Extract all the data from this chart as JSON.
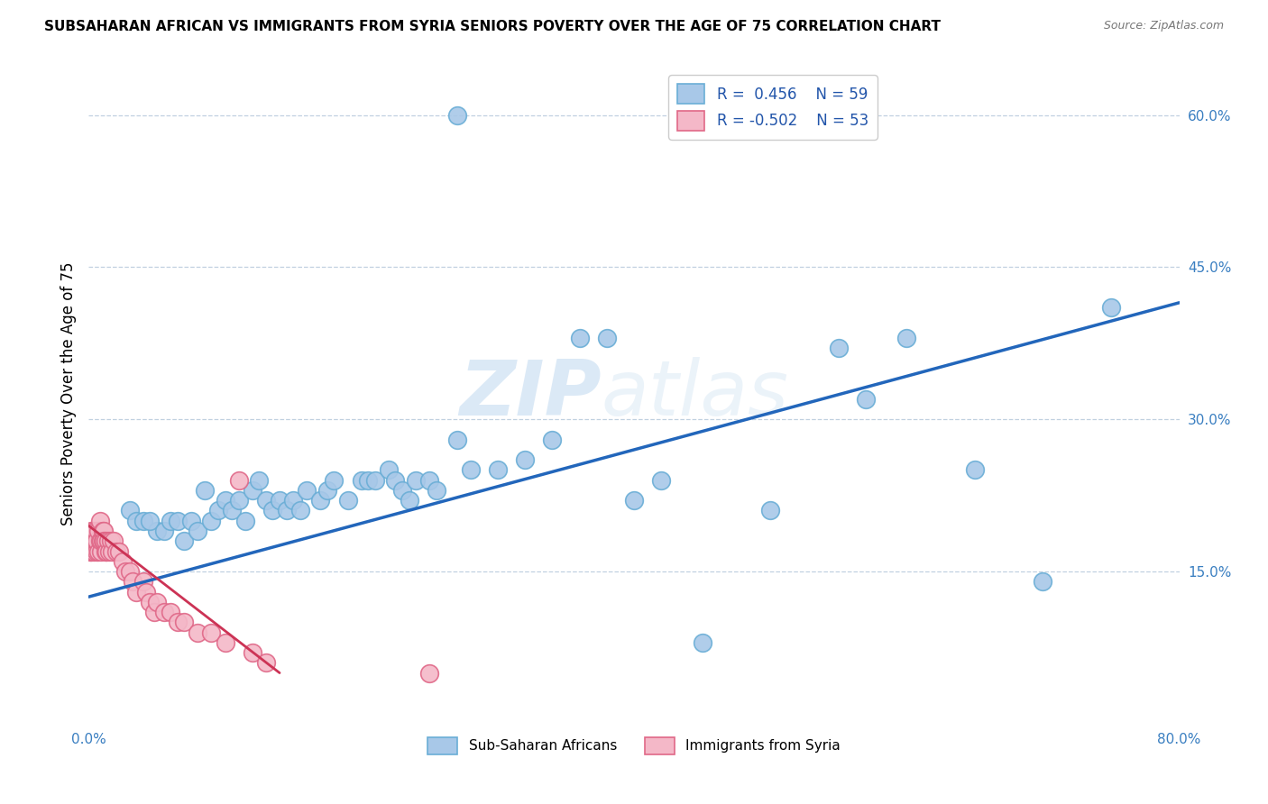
{
  "title": "SUBSAHARAN AFRICAN VS IMMIGRANTS FROM SYRIA SENIORS POVERTY OVER THE AGE OF 75 CORRELATION CHART",
  "source": "Source: ZipAtlas.com",
  "ylabel": "Seniors Poverty Over the Age of 75",
  "xlim": [
    0.0,
    0.8
  ],
  "ylim": [
    0.0,
    0.65
  ],
  "xticks": [
    0.0,
    0.1,
    0.2,
    0.3,
    0.4,
    0.5,
    0.6,
    0.7,
    0.8
  ],
  "xticklabels": [
    "0.0%",
    "",
    "",
    "",
    "",
    "",
    "",
    "",
    "80.0%"
  ],
  "yticks_right": [
    0.15,
    0.3,
    0.45,
    0.6
  ],
  "ytick_right_labels": [
    "15.0%",
    "30.0%",
    "45.0%",
    "60.0%"
  ],
  "blue_color": "#a8c8e8",
  "blue_edge": "#6aaed6",
  "pink_color": "#f4b8c8",
  "pink_edge": "#e06888",
  "trend_blue": "#2266bb",
  "trend_pink": "#cc3355",
  "legend_label_blue": "Sub-Saharan Africans",
  "legend_label_pink": "Immigrants from Syria",
  "watermark_zip": "ZIP",
  "watermark_atlas": "atlas",
  "blue_trend_x0": 0.0,
  "blue_trend_y0": 0.125,
  "blue_trend_x1": 0.8,
  "blue_trend_y1": 0.415,
  "pink_trend_x0": 0.0,
  "pink_trend_y0": 0.195,
  "pink_trend_x1": 0.14,
  "pink_trend_y1": 0.05,
  "blue_scatter_x": [
    0.27,
    0.03,
    0.035,
    0.04,
    0.05,
    0.045,
    0.055,
    0.06,
    0.065,
    0.07,
    0.075,
    0.08,
    0.085,
    0.09,
    0.095,
    0.1,
    0.105,
    0.11,
    0.115,
    0.12,
    0.125,
    0.13,
    0.135,
    0.14,
    0.145,
    0.15,
    0.155,
    0.16,
    0.17,
    0.175,
    0.18,
    0.19,
    0.2,
    0.205,
    0.21,
    0.22,
    0.225,
    0.23,
    0.235,
    0.24,
    0.25,
    0.255,
    0.27,
    0.28,
    0.3,
    0.32,
    0.34,
    0.36,
    0.38,
    0.4,
    0.42,
    0.45,
    0.5,
    0.55,
    0.57,
    0.6,
    0.65,
    0.7,
    0.75
  ],
  "blue_scatter_y": [
    0.6,
    0.21,
    0.2,
    0.2,
    0.19,
    0.2,
    0.19,
    0.2,
    0.2,
    0.18,
    0.2,
    0.19,
    0.23,
    0.2,
    0.21,
    0.22,
    0.21,
    0.22,
    0.2,
    0.23,
    0.24,
    0.22,
    0.21,
    0.22,
    0.21,
    0.22,
    0.21,
    0.23,
    0.22,
    0.23,
    0.24,
    0.22,
    0.24,
    0.24,
    0.24,
    0.25,
    0.24,
    0.23,
    0.22,
    0.24,
    0.24,
    0.23,
    0.28,
    0.25,
    0.25,
    0.26,
    0.28,
    0.38,
    0.38,
    0.22,
    0.24,
    0.08,
    0.21,
    0.37,
    0.32,
    0.38,
    0.25,
    0.14,
    0.41
  ],
  "pink_scatter_x": [
    0.001,
    0.001,
    0.002,
    0.002,
    0.003,
    0.003,
    0.004,
    0.004,
    0.005,
    0.005,
    0.006,
    0.006,
    0.007,
    0.007,
    0.008,
    0.008,
    0.009,
    0.009,
    0.01,
    0.01,
    0.011,
    0.011,
    0.012,
    0.012,
    0.013,
    0.014,
    0.015,
    0.016,
    0.017,
    0.018,
    0.02,
    0.022,
    0.025,
    0.027,
    0.03,
    0.032,
    0.035,
    0.04,
    0.042,
    0.045,
    0.048,
    0.05,
    0.055,
    0.06,
    0.065,
    0.07,
    0.08,
    0.09,
    0.1,
    0.11,
    0.12,
    0.13,
    0.25
  ],
  "pink_scatter_y": [
    0.18,
    0.17,
    0.17,
    0.19,
    0.18,
    0.19,
    0.17,
    0.18,
    0.18,
    0.19,
    0.17,
    0.18,
    0.19,
    0.17,
    0.18,
    0.2,
    0.17,
    0.18,
    0.19,
    0.18,
    0.19,
    0.18,
    0.17,
    0.18,
    0.17,
    0.18,
    0.17,
    0.18,
    0.17,
    0.18,
    0.17,
    0.17,
    0.16,
    0.15,
    0.15,
    0.14,
    0.13,
    0.14,
    0.13,
    0.12,
    0.11,
    0.12,
    0.11,
    0.11,
    0.1,
    0.1,
    0.09,
    0.09,
    0.08,
    0.24,
    0.07,
    0.06,
    0.05
  ]
}
